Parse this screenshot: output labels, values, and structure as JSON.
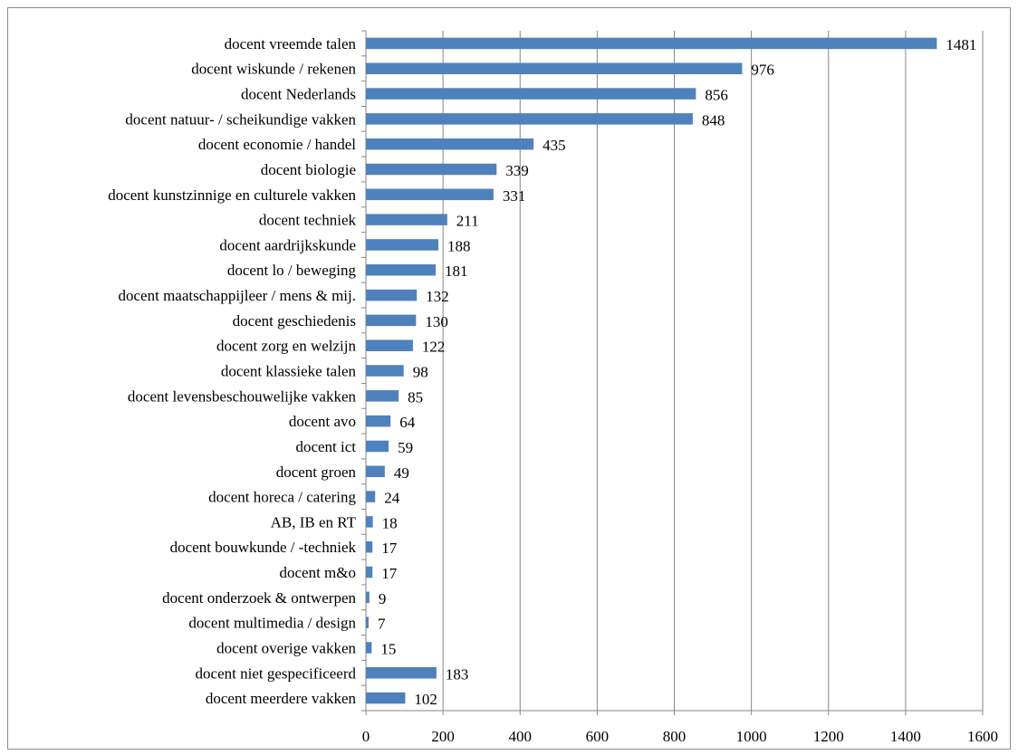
{
  "chart_data": {
    "type": "bar",
    "orientation": "horizontal",
    "title": "",
    "xlabel": "",
    "ylabel": "",
    "xlim": [
      0,
      1600
    ],
    "x_ticks": [
      0,
      200,
      400,
      600,
      800,
      1000,
      1200,
      1400,
      1600
    ],
    "grid": "vertical",
    "legend": "none",
    "bar_color": "#4f81bd",
    "data_labels": true,
    "categories": [
      "docent vreemde talen",
      "docent wiskunde / rekenen",
      "docent Nederlands",
      "docent natuur- / scheikundige vakken",
      "docent economie / handel",
      "docent biologie",
      "docent kunstzinnige en culturele vakken",
      "docent techniek",
      "docent aardrijkskunde",
      "docent lo / beweging",
      "docent maatschappijleer / mens & mij.",
      "docent geschiedenis",
      "docent zorg en welzijn",
      "docent klassieke talen",
      "docent levensbeschouwelijke vakken",
      "docent avo",
      "docent ict",
      "docent groen",
      "docent horeca / catering",
      "AB, IB en RT",
      "docent bouwkunde / -techniek",
      "docent m&o",
      "docent onderzoek & ontwerpen",
      "docent multimedia / design",
      "docent overige vakken",
      "docent niet gespecificeerd",
      "docent meerdere vakken"
    ],
    "values": [
      1481,
      976,
      856,
      848,
      435,
      339,
      331,
      211,
      188,
      181,
      132,
      130,
      122,
      98,
      85,
      64,
      59,
      49,
      24,
      18,
      17,
      17,
      9,
      7,
      15,
      183,
      102
    ]
  }
}
